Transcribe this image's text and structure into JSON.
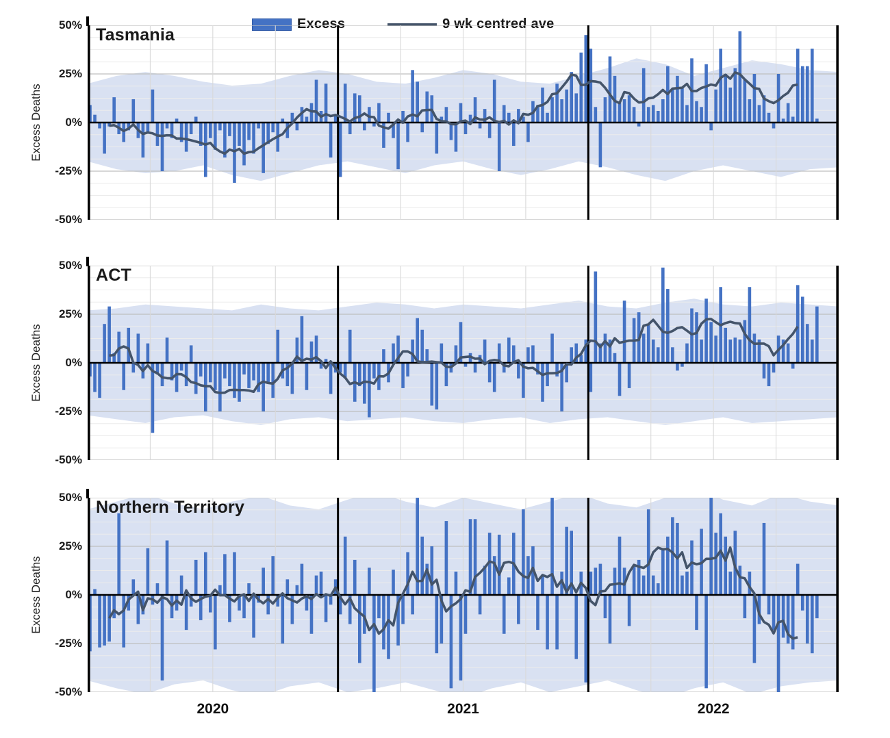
{
  "legend": {
    "excess_label": "Excess",
    "avg_label": "9 wk centred ave"
  },
  "y_axis": {
    "label": "Excess Deaths",
    "tick_labels": [
      "50%",
      "25%",
      "0%",
      "-25%",
      "-50%"
    ],
    "ylim": [
      -50,
      50
    ]
  },
  "x_axis": {
    "year_labels": [
      "2020",
      "2021",
      "2022"
    ]
  },
  "colors": {
    "bar": "#4472C4",
    "avg_line": "#44546A",
    "band": "#D9E1F2",
    "grid_major": "#BFBFBF",
    "grid_minor": "#ECECEC",
    "grid_quarter": "#D9D9D9",
    "axis": "#000000"
  },
  "chart_data": {
    "type": "bar",
    "description": "Weekly excess deaths (%) with 9-week centred moving average and baseline uncertainty band, Jan 2020 - Nov 2022",
    "x_unit": "week",
    "weeks_per_year": 52,
    "n_weeks": 152,
    "ma_window": 9,
    "years": [
      "2020",
      "2021",
      "2022"
    ],
    "band_weeks": [
      0,
      6,
      12,
      18,
      24,
      30,
      36,
      42,
      48,
      54,
      60,
      66,
      72,
      78,
      84,
      90,
      96,
      102,
      108,
      114,
      120,
      126,
      132,
      138,
      144,
      150,
      156
    ],
    "panels": [
      {
        "title": "Tasmania",
        "bars_pct": [
          9,
          4,
          -3,
          -16,
          -2,
          13,
          -6,
          -10,
          -4,
          12,
          -8,
          -18,
          -5,
          17,
          -12,
          -25,
          -3,
          -8,
          2,
          -10,
          -15,
          -6,
          3,
          -12,
          -28,
          -8,
          -14,
          -4,
          -18,
          -7,
          -31,
          -12,
          -22,
          -9,
          -16,
          -3,
          -26,
          -11,
          -5,
          -15,
          2,
          -8,
          5,
          -4,
          8,
          3,
          10,
          22,
          6,
          20,
          -18,
          4,
          -28,
          20,
          -6,
          15,
          14,
          -4,
          8,
          -2,
          10,
          -13,
          5,
          -8,
          -24,
          6,
          -10,
          27,
          21,
          -5,
          16,
          14,
          -16,
          3,
          8,
          -9,
          -15,
          10,
          -6,
          4,
          13,
          -3,
          7,
          -8,
          22,
          -25,
          9,
          5,
          -12,
          7,
          3,
          -10,
          11,
          9,
          18,
          5,
          13,
          20,
          12,
          17,
          26,
          15,
          36,
          45,
          38,
          8,
          -23,
          13,
          34,
          24,
          10,
          12,
          14,
          8,
          -2,
          28,
          8,
          9,
          6,
          12,
          29,
          17,
          24,
          18,
          9,
          33,
          11,
          8,
          30,
          -4,
          17,
          38,
          25,
          18,
          28,
          47,
          22,
          12,
          25,
          9,
          14,
          5,
          -3,
          25,
          2,
          10,
          3,
          38,
          29,
          29,
          38,
          2
        ],
        "band_upper_pct": [
          20,
          24,
          26,
          24,
          21,
          19,
          20,
          24,
          27,
          25,
          21,
          20,
          23,
          27,
          25,
          21,
          20,
          24,
          28,
          33,
          30,
          24,
          28,
          32,
          30,
          27,
          26
        ],
        "band_lower_pct": [
          -20,
          -24,
          -26,
          -25,
          -22,
          -27,
          -30,
          -26,
          -22,
          -20,
          -23,
          -26,
          -22,
          -20,
          -24,
          -27,
          -24,
          -20,
          -23,
          -27,
          -30,
          -25,
          -22,
          -25,
          -28,
          -24,
          -23
        ]
      },
      {
        "title": "ACT",
        "bars_pct": [
          -7,
          -15,
          -18,
          20,
          29,
          5,
          16,
          -14,
          18,
          -5,
          15,
          -8,
          10,
          -36,
          -6,
          -12,
          13,
          -9,
          -15,
          -4,
          -12,
          9,
          -16,
          -7,
          -25,
          -10,
          -14,
          -25,
          -8,
          -12,
          -18,
          -20,
          -6,
          -13,
          -9,
          -15,
          -25,
          -10,
          -18,
          17,
          -8,
          -12,
          -16,
          13,
          24,
          -14,
          11,
          14,
          -3,
          2,
          -16,
          -5,
          -5,
          -8,
          17,
          -20,
          -12,
          -21,
          -28,
          -8,
          -14,
          7,
          -10,
          10,
          14,
          -13,
          -7,
          12,
          23,
          17,
          7,
          -22,
          -24,
          10,
          -12,
          -5,
          9,
          21,
          -2,
          5,
          -5,
          4,
          12,
          -10,
          -15,
          10,
          -5,
          13,
          9,
          -8,
          -18,
          8,
          9,
          -6,
          -20,
          -12,
          15,
          -7,
          -25,
          -10,
          8,
          10,
          4,
          12,
          -15,
          47,
          10,
          15,
          12,
          5,
          -17,
          32,
          -13,
          23,
          26,
          15,
          20,
          12,
          8,
          49,
          38,
          8,
          -4,
          -2,
          10,
          28,
          26,
          12,
          33,
          21,
          14,
          39,
          18,
          12,
          13,
          12,
          22,
          39,
          15,
          12,
          -8,
          -12,
          -5,
          14,
          12,
          10,
          -3,
          40,
          34,
          20,
          12,
          29
        ],
        "band_upper_pct": [
          27,
          28,
          30,
          29,
          28,
          27,
          30,
          28,
          27,
          29,
          31,
          30,
          28,
          30,
          29,
          28,
          30,
          32,
          29,
          28,
          31,
          33,
          30,
          29,
          31,
          30,
          29
        ],
        "band_lower_pct": [
          -27,
          -29,
          -31,
          -28,
          -27,
          -30,
          -32,
          -29,
          -28,
          -30,
          -29,
          -28,
          -30,
          -31,
          -29,
          -28,
          -31,
          -29,
          -28,
          -30,
          -32,
          -30,
          -28,
          -31,
          -30,
          -29,
          -28
        ]
      },
      {
        "title": "Northern Territory",
        "bars_pct": [
          -29,
          3,
          -27,
          -26,
          -24,
          -12,
          42,
          -27,
          -8,
          8,
          -15,
          -10,
          24,
          -5,
          6,
          -44,
          28,
          -12,
          -8,
          10,
          -18,
          -6,
          18,
          -13,
          22,
          -9,
          -28,
          5,
          21,
          -14,
          22,
          -8,
          -12,
          6,
          -22,
          -4,
          14,
          -10,
          20,
          -6,
          -25,
          8,
          -15,
          5,
          16,
          -8,
          -20,
          10,
          12,
          -14,
          -5,
          8,
          -10,
          30,
          -15,
          18,
          -35,
          -20,
          14,
          -52,
          -12,
          -28,
          -33,
          13,
          -26,
          -15,
          22,
          -10,
          52,
          30,
          16,
          25,
          -30,
          -25,
          38,
          -48,
          12,
          -44,
          -20,
          39,
          39,
          -10,
          15,
          32,
          20,
          31,
          -20,
          9,
          32,
          -15,
          44,
          20,
          25,
          -18,
          10,
          -28,
          55,
          -28,
          12,
          35,
          33,
          -33,
          12,
          -45,
          12,
          14,
          16,
          -12,
          -25,
          14,
          30,
          14,
          -16,
          15,
          18,
          10,
          44,
          10,
          6,
          24,
          30,
          40,
          37,
          10,
          12,
          28,
          -18,
          34,
          -48,
          55,
          32,
          42,
          30,
          12,
          33,
          15,
          -12,
          12,
          -35,
          -15,
          37,
          -10,
          -18,
          -62,
          -22,
          -25,
          -28,
          16,
          -8,
          -25,
          -30,
          -12
        ],
        "band_upper_pct": [
          44,
          48,
          52,
          47,
          44,
          48,
          51,
          46,
          44,
          49,
          53,
          48,
          45,
          50,
          47,
          44,
          48,
          52,
          47,
          45,
          50,
          55,
          49,
          46,
          52,
          48,
          46
        ],
        "band_lower_pct": [
          -44,
          -48,
          -51,
          -46,
          -44,
          -49,
          -52,
          -47,
          -45,
          -50,
          -48,
          -45,
          -49,
          -53,
          -48,
          -45,
          -50,
          -47,
          -44,
          -49,
          -53,
          -48,
          -45,
          -51,
          -47,
          -45,
          -44
        ]
      }
    ]
  }
}
